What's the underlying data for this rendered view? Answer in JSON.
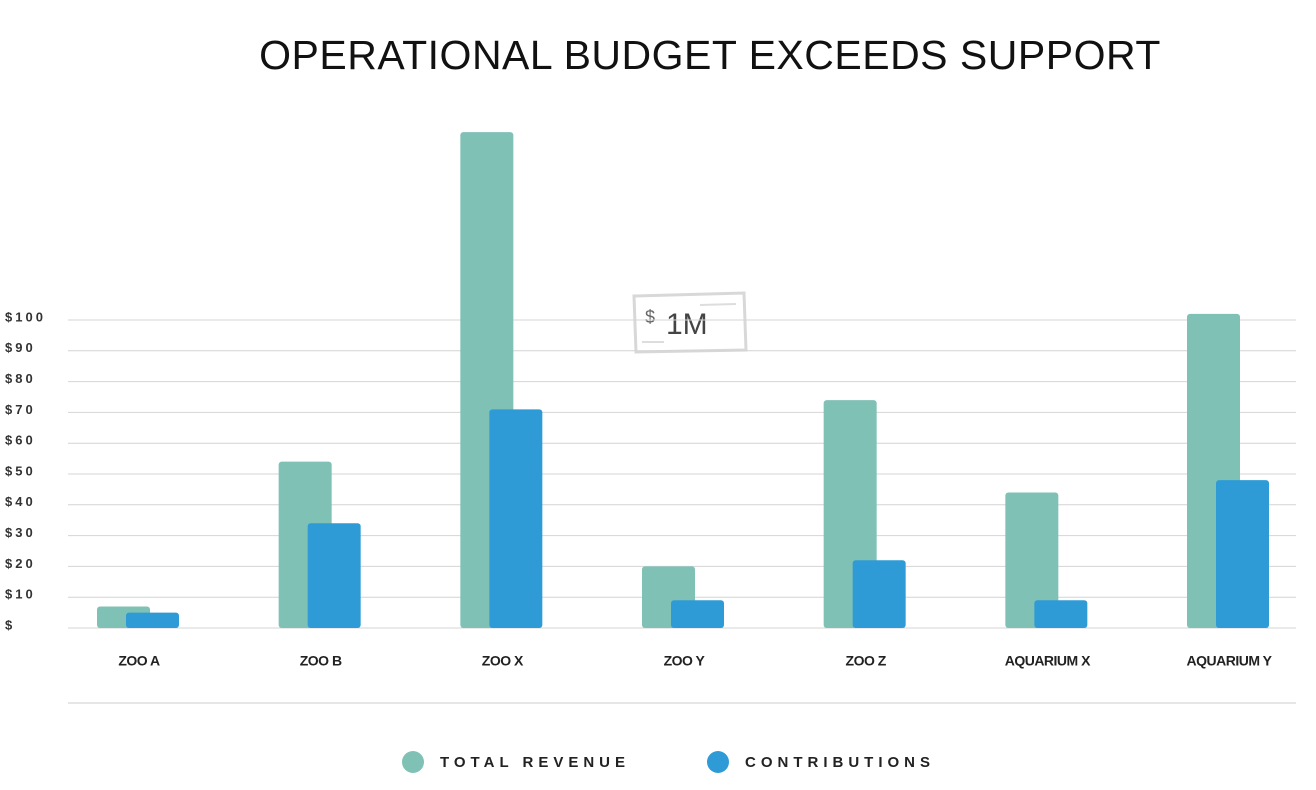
{
  "chart_data": {
    "type": "bar",
    "title": "OPERATIONAL BUDGET EXCEEDS SUPPORT",
    "annotation": {
      "currency": "$",
      "amount": "1M"
    },
    "categories": [
      "ZOO A",
      "ZOO B",
      "ZOO X",
      "ZOO Y",
      "ZOO Z",
      "AQUARIUM X",
      "AQUARIUM Y"
    ],
    "series": [
      {
        "name": "TOTAL REVENUE",
        "color": "#80c1b6",
        "values": [
          7,
          54,
          161,
          20,
          74,
          44,
          102
        ]
      },
      {
        "name": "CONTRIBUTIONS",
        "color": "#2f9bd6",
        "values": [
          5,
          34,
          71,
          9,
          22,
          9,
          48
        ]
      }
    ],
    "ylim": [
      0,
      165
    ],
    "yticks": [
      {
        "value": 0,
        "label": "$"
      },
      {
        "value": 10,
        "label": "$10"
      },
      {
        "value": 20,
        "label": "$20"
      },
      {
        "value": 30,
        "label": "$30"
      },
      {
        "value": 40,
        "label": "$40"
      },
      {
        "value": 50,
        "label": "$50"
      },
      {
        "value": 60,
        "label": "$60"
      },
      {
        "value": 70,
        "label": "$70"
      },
      {
        "value": 80,
        "label": "$80"
      },
      {
        "value": 90,
        "label": "$90"
      },
      {
        "value": 100,
        "label": "$100"
      }
    ],
    "grid": true,
    "legend": "bottom"
  }
}
